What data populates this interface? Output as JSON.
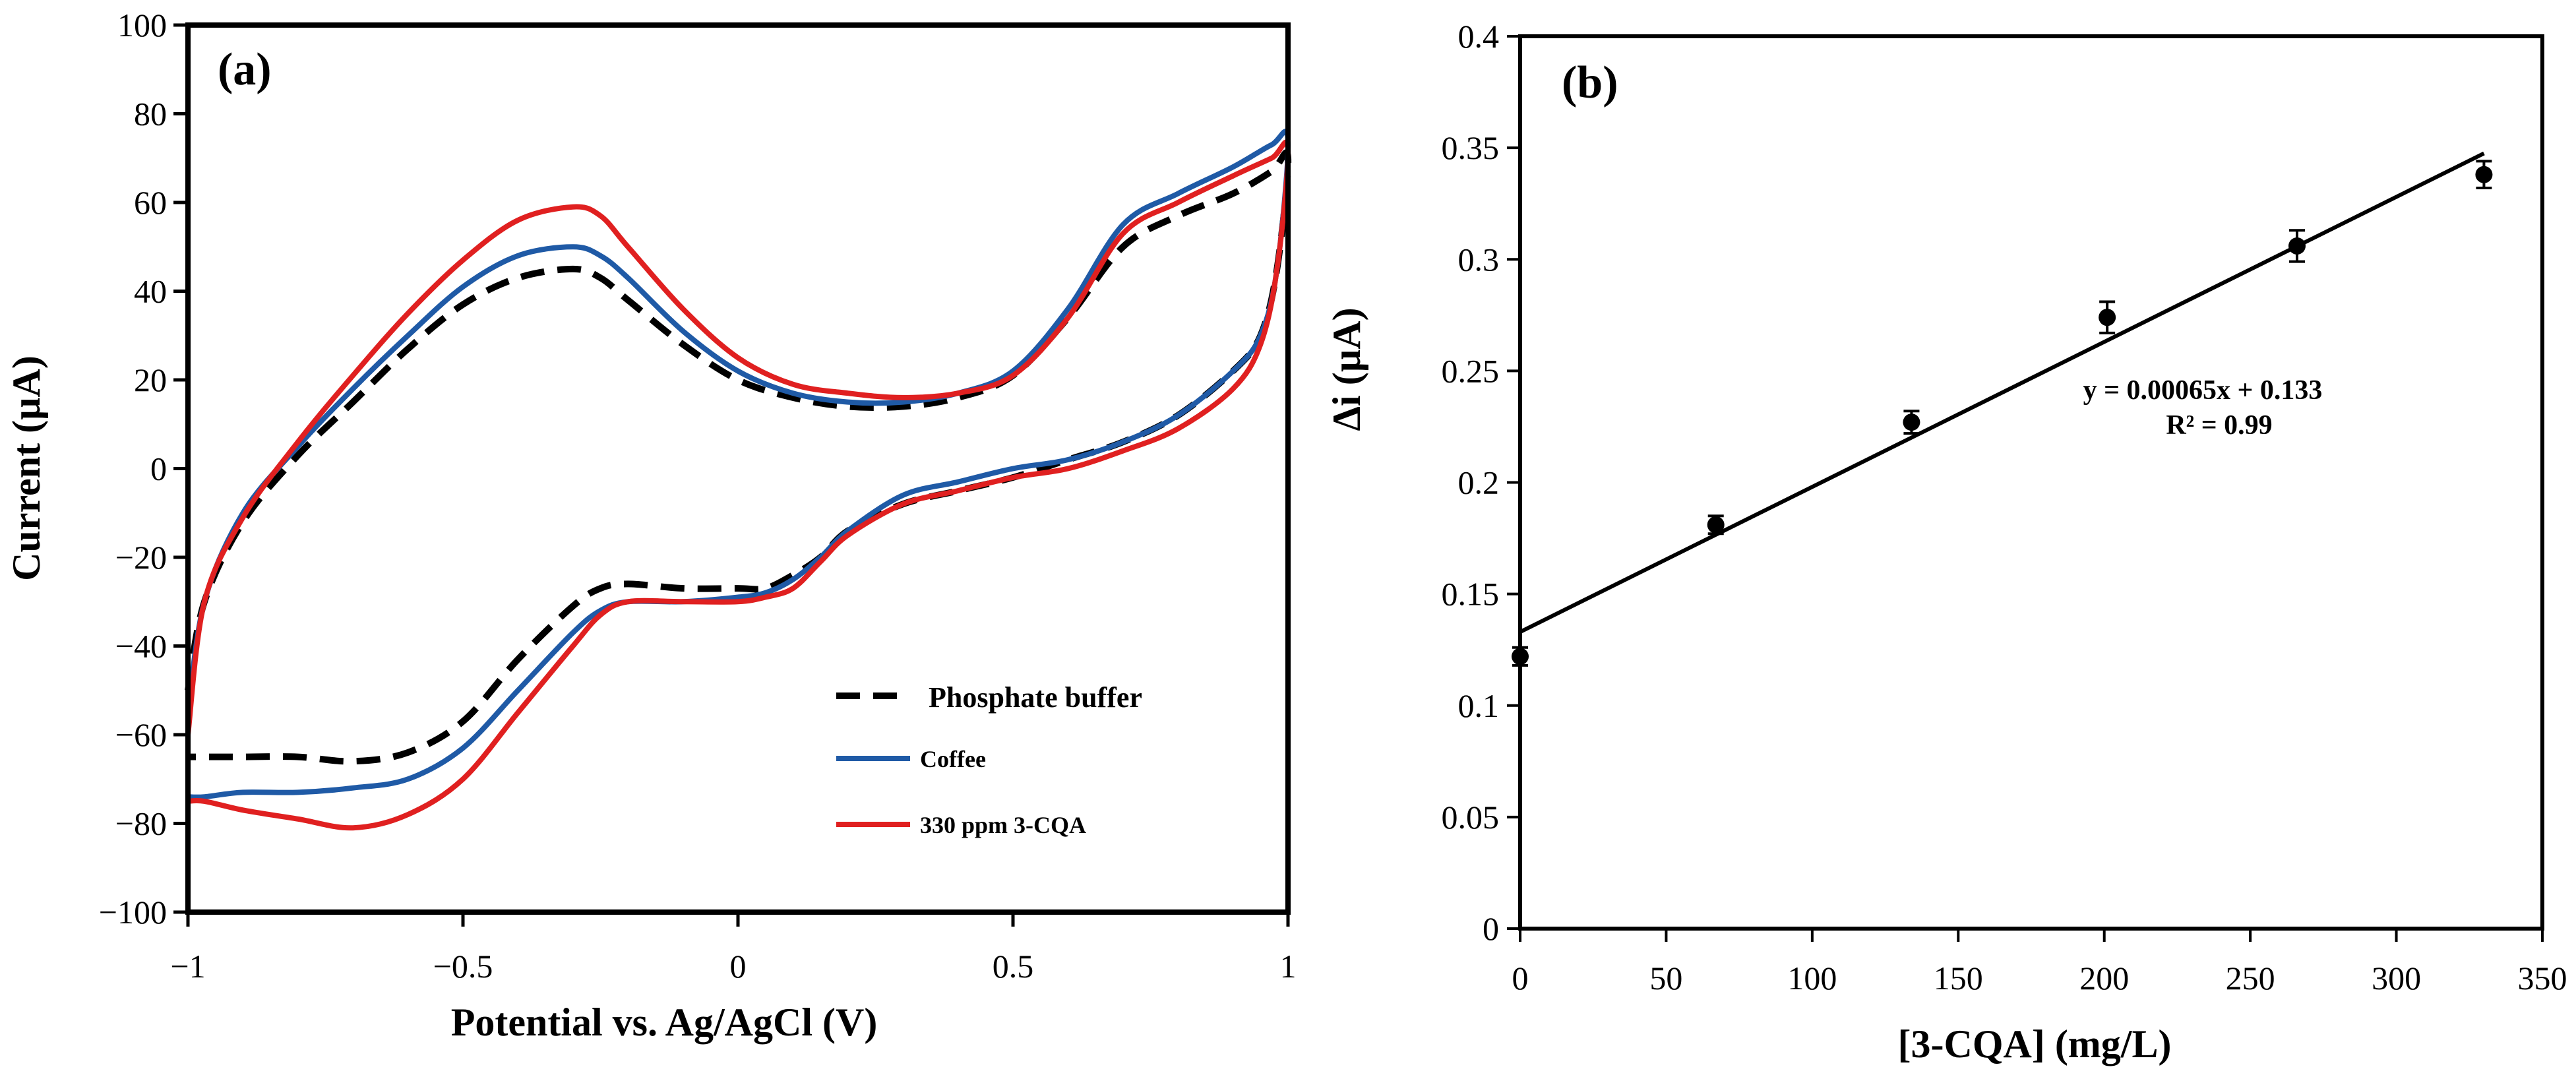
{
  "chart_data": [
    {
      "type": "line",
      "panel": "(a)",
      "xlabel": "Potential vs. Ag/AgCl (V)",
      "ylabel": "Current (µA)",
      "xlim": [
        -1,
        1
      ],
      "ylim": [
        -100,
        100
      ],
      "xticks": [
        -1,
        -0.5,
        0,
        0.5,
        1
      ],
      "xtick_labels": [
        "−1",
        "−0.5",
        "0",
        "0.5",
        "1"
      ],
      "yticks": [
        -100,
        -80,
        -60,
        -40,
        -20,
        0,
        20,
        40,
        60,
        80,
        100
      ],
      "ytick_labels": [
        "−100",
        "−80",
        "−60",
        "−40",
        "−20",
        "0",
        "20",
        "40",
        "60",
        "80",
        "100"
      ],
      "grid": false,
      "legend_position": "bottom-right",
      "series": [
        {
          "name": "Phosphate buffer",
          "color": "#000000",
          "dash": "dashed",
          "legend_text_color": "#666666",
          "x": [
            -1.0,
            -0.97,
            -0.9,
            -0.8,
            -0.7,
            -0.6,
            -0.5,
            -0.4,
            -0.3,
            -0.25,
            -0.2,
            -0.1,
            0.0,
            0.1,
            0.2,
            0.3,
            0.4,
            0.5,
            0.6,
            0.7,
            0.8,
            0.9,
            0.97,
            1.0,
            0.98,
            0.95,
            0.9,
            0.8,
            0.7,
            0.6,
            0.5,
            0.4,
            0.3,
            0.2,
            0.15,
            0.1,
            0.05,
            0.0,
            -0.1,
            -0.2,
            -0.25,
            -0.3,
            -0.4,
            -0.5,
            -0.6,
            -0.7,
            -0.8,
            -0.9,
            -0.97,
            -1.0
          ],
          "y": [
            -50,
            -30,
            -12,
            3,
            15,
            27,
            37,
            43,
            45,
            43,
            38,
            28,
            20,
            16,
            14,
            14,
            16,
            21,
            34,
            50,
            57,
            62,
            67,
            70,
            45,
            30,
            22,
            12,
            6,
            2,
            -2,
            -5,
            -8,
            -14,
            -20,
            -24,
            -27,
            -27,
            -27,
            -26,
            -27,
            -31,
            -43,
            -57,
            -64,
            -66,
            -65,
            -65,
            -65,
            -65
          ]
        },
        {
          "name": "Coffee",
          "color": "#1f5aa6",
          "dash": "solid",
          "legend_text_color": "#000000",
          "x": [
            -1.0,
            -0.97,
            -0.9,
            -0.8,
            -0.7,
            -0.6,
            -0.5,
            -0.4,
            -0.3,
            -0.25,
            -0.2,
            -0.1,
            0.0,
            0.1,
            0.2,
            0.3,
            0.4,
            0.5,
            0.6,
            0.7,
            0.8,
            0.9,
            0.97,
            1.0,
            0.98,
            0.95,
            0.9,
            0.8,
            0.7,
            0.6,
            0.5,
            0.4,
            0.3,
            0.2,
            0.15,
            0.1,
            0.05,
            0.0,
            -0.1,
            -0.2,
            -0.25,
            -0.3,
            -0.4,
            -0.5,
            -0.6,
            -0.7,
            -0.8,
            -0.9,
            -0.97,
            -1.0
          ],
          "y": [
            -55,
            -30,
            -10,
            5,
            18,
            30,
            41,
            48,
            50,
            48,
            43,
            31,
            22,
            17,
            15,
            15,
            17,
            22,
            36,
            55,
            62,
            68,
            73,
            74,
            45,
            30,
            22,
            12,
            6,
            2,
            0,
            -3,
            -6,
            -14,
            -20,
            -25,
            -28,
            -29,
            -30,
            -30,
            -32,
            -37,
            -50,
            -63,
            -70,
            -72,
            -73,
            -73,
            -74,
            -74
          ]
        },
        {
          "name": "330 ppm 3-CQA",
          "color": "#e02020",
          "dash": "solid",
          "legend_text_color": "#000000",
          "x": [
            -1.0,
            -0.97,
            -0.9,
            -0.8,
            -0.7,
            -0.6,
            -0.5,
            -0.4,
            -0.3,
            -0.25,
            -0.2,
            -0.1,
            0.0,
            0.1,
            0.2,
            0.3,
            0.4,
            0.5,
            0.6,
            0.7,
            0.8,
            0.9,
            0.97,
            1.0,
            0.98,
            0.95,
            0.9,
            0.8,
            0.7,
            0.6,
            0.5,
            0.4,
            0.3,
            0.2,
            0.15,
            0.1,
            0.05,
            0.0,
            -0.1,
            -0.2,
            -0.25,
            -0.3,
            -0.4,
            -0.5,
            -0.6,
            -0.7,
            -0.8,
            -0.9,
            -0.97,
            -1.0
          ],
          "y": [
            -60,
            -30,
            -11,
            6,
            21,
            35,
            47,
            56,
            59,
            57,
            50,
            36,
            25,
            19,
            17,
            16,
            17,
            21,
            34,
            53,
            60,
            66,
            70,
            72,
            45,
            28,
            18,
            9,
            4,
            0,
            -2,
            -5,
            -8,
            -15,
            -21,
            -27,
            -29,
            -30,
            -30,
            -30,
            -33,
            -40,
            -55,
            -70,
            -78,
            -81,
            -79,
            -77,
            -75,
            -75
          ]
        }
      ]
    },
    {
      "type": "scatter",
      "panel": "(b)",
      "xlabel": "[3-CQA] (mg/L)",
      "ylabel": "Δi (µA)",
      "xlim": [
        0,
        350
      ],
      "ylim": [
        0,
        0.4
      ],
      "xticks": [
        0,
        50,
        100,
        150,
        200,
        250,
        300,
        350
      ],
      "xtick_labels": [
        "0",
        "50",
        "100",
        "150",
        "200",
        "250",
        "300",
        "350"
      ],
      "yticks": [
        0,
        0.05,
        0.1,
        0.15,
        0.2,
        0.25,
        0.3,
        0.35,
        0.4
      ],
      "ytick_labels": [
        "0",
        "0.05",
        "0.1",
        "0.15",
        "0.2",
        "0.25",
        "0.3",
        "0.35",
        "0.4"
      ],
      "grid": false,
      "x": [
        0,
        67,
        134,
        201,
        266,
        330
      ],
      "y": [
        0.122,
        0.181,
        0.227,
        0.274,
        0.306,
        0.338
      ],
      "error": [
        0.004,
        0.004,
        0.005,
        0.007,
        0.007,
        0.006
      ],
      "fit": {
        "slope": 0.00065,
        "intercept": 0.133,
        "x_range": [
          0,
          330
        ],
        "equation": "y = 0.00065x + 0.133",
        "r2_text": "R² = 0.99"
      }
    }
  ]
}
